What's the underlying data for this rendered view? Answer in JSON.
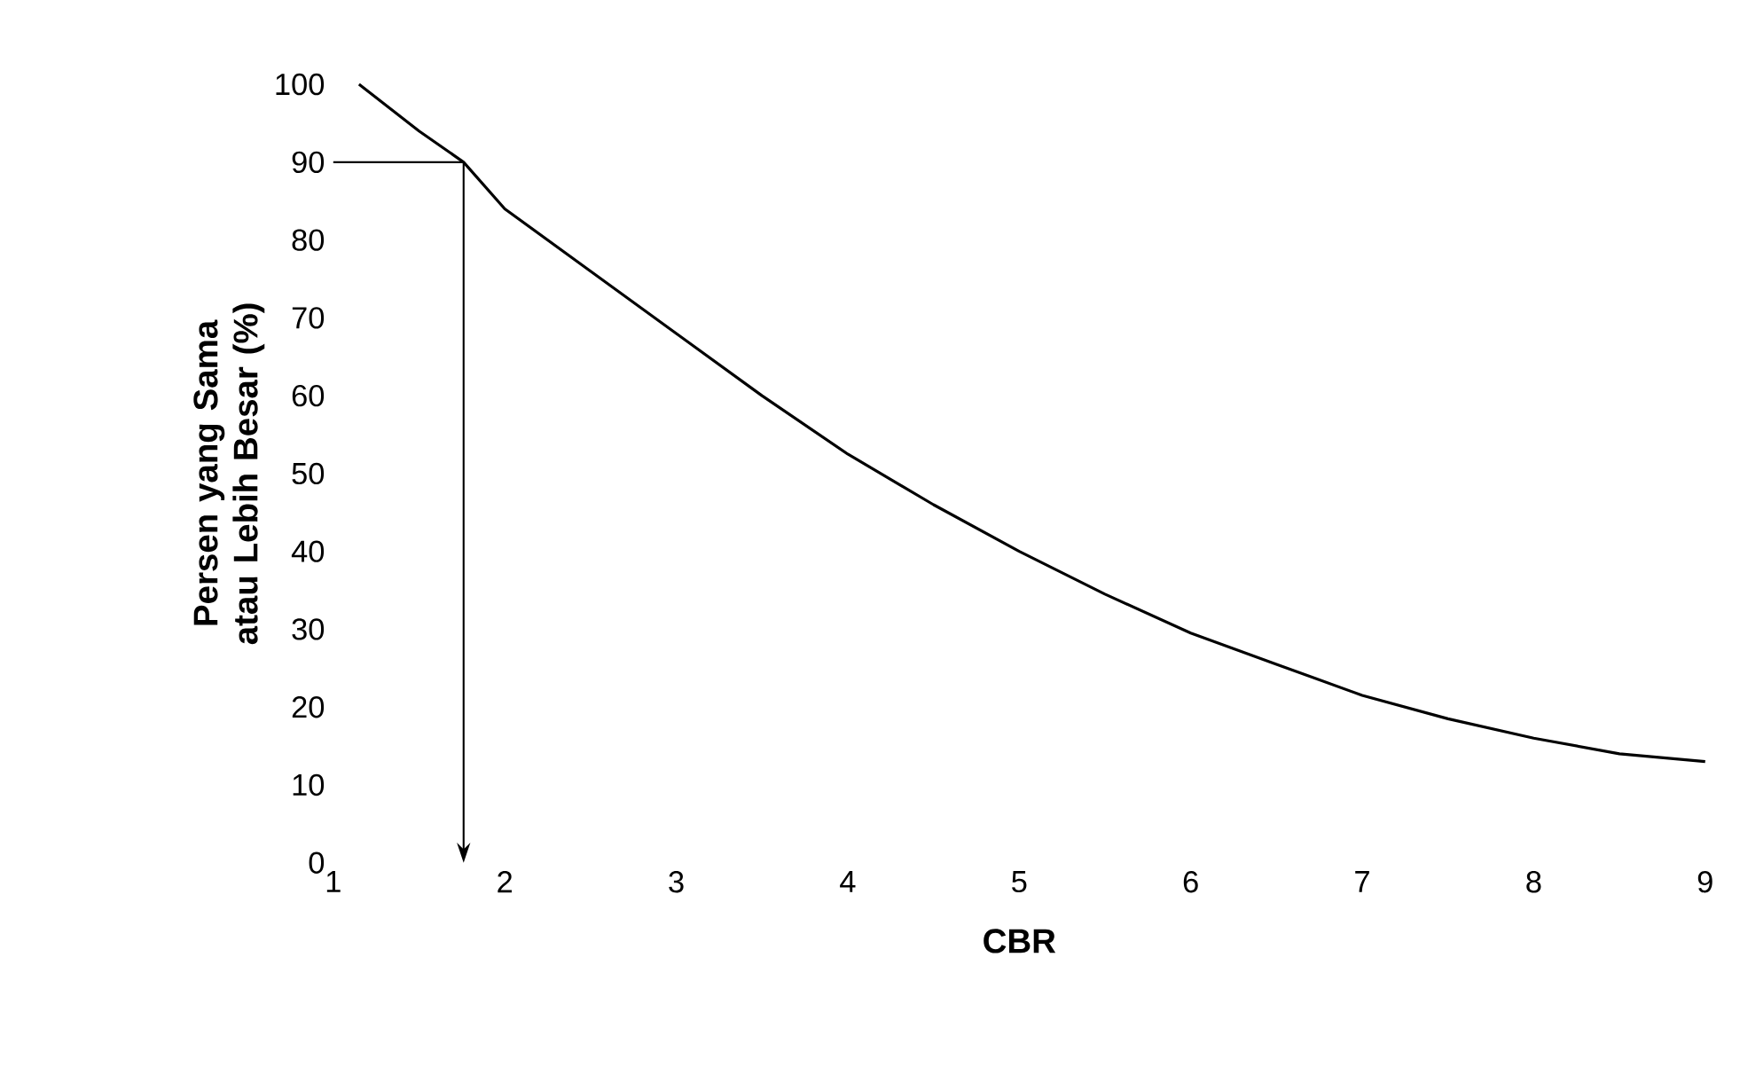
{
  "chart_data": {
    "type": "line",
    "xlabel": "CBR",
    "ylabel": "Persen yang Sama atau Lebih Besar (%)",
    "xlim": [
      1,
      9
    ],
    "ylim": [
      0,
      100
    ],
    "xticks": [
      1,
      2,
      3,
      4,
      5,
      6,
      7,
      8,
      9
    ],
    "yticks": [
      0,
      10,
      20,
      30,
      40,
      50,
      60,
      70,
      80,
      90,
      100
    ],
    "x": [
      1.15,
      1.5,
      1.76,
      2,
      2.5,
      3,
      3.5,
      4,
      4.5,
      5,
      5.5,
      6,
      6.5,
      7,
      7.5,
      8,
      8.5,
      9
    ],
    "series": [
      {
        "color": "#000000",
        "values": [
          100,
          94,
          90,
          84,
          76,
          68,
          60,
          52.5,
          46,
          40,
          34.5,
          29.5,
          25.5,
          21.5,
          18.5,
          16,
          14,
          13
        ]
      }
    ],
    "ref_lines": [
      {
        "axis": "y",
        "value": 90
      },
      {
        "axis": "x",
        "value": 1.76
      }
    ],
    "grid": false
  }
}
